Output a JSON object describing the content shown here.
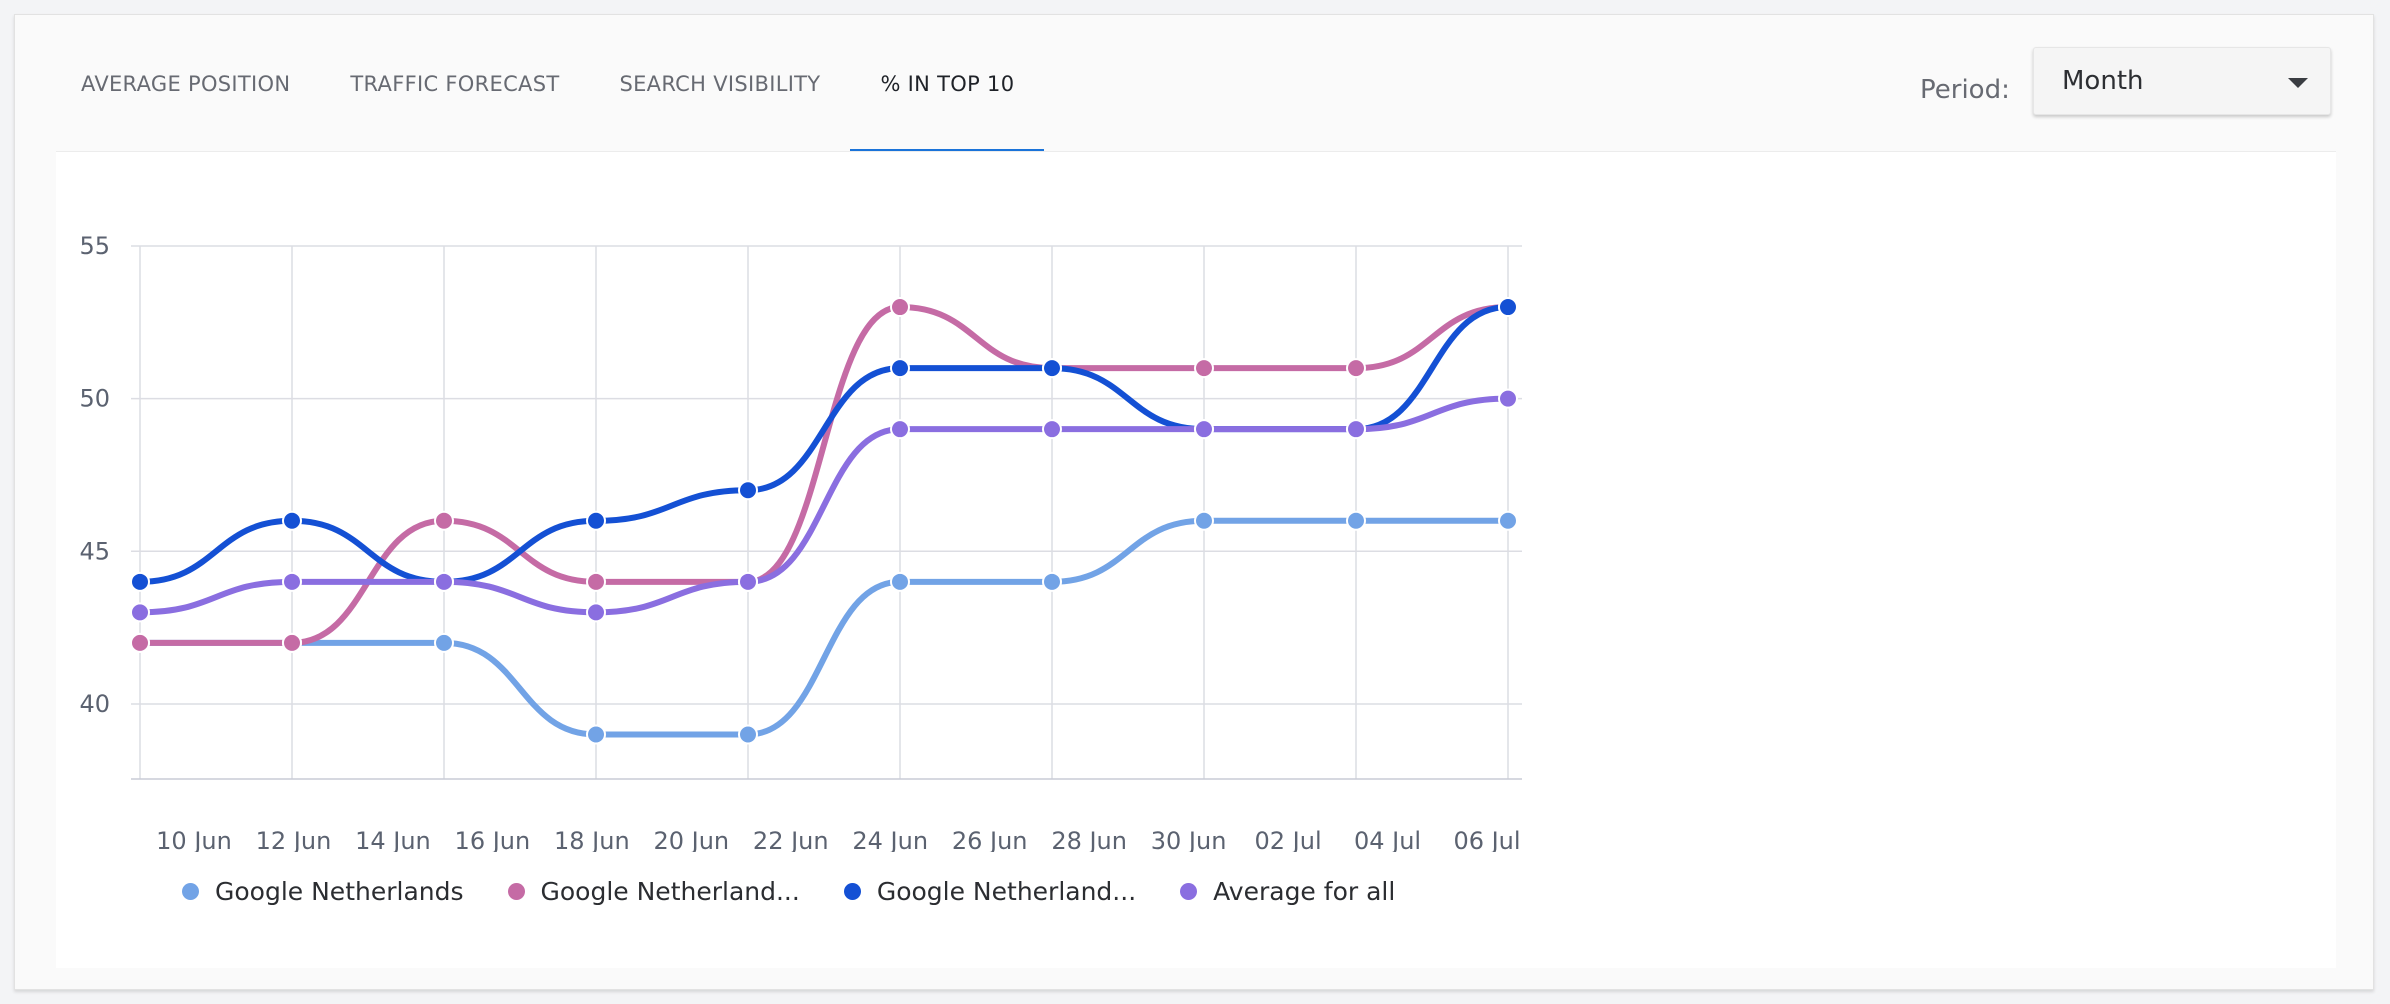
{
  "tabs": [
    {
      "label": "AVERAGE POSITION"
    },
    {
      "label": "TRAFFIC FORECAST"
    },
    {
      "label": "SEARCH VISIBILITY"
    },
    {
      "label": "% IN TOP 10"
    }
  ],
  "active_tab": "% IN TOP 10",
  "period": {
    "label": "Period:",
    "value": "Month",
    "icon": "caret-down-icon"
  },
  "colors": {
    "accent": "#1a73d9"
  },
  "chart_data": {
    "type": "line",
    "x": [
      "2024-06-09",
      "2024-06-12",
      "2024-06-15",
      "2024-06-18",
      "2024-06-21",
      "2024-06-24",
      "2024-06-27",
      "2024-06-30",
      "2024-07-03",
      "2024-07-06"
    ],
    "x_ticks": [
      "10 Jun",
      "12 Jun",
      "14 Jun",
      "16 Jun",
      "18 Jun",
      "20 Jun",
      "22 Jun",
      "24 Jun",
      "26 Jun",
      "28 Jun",
      "30 Jun",
      "02 Jul",
      "04 Jul",
      "06 Jul"
    ],
    "y_ticks": [
      40,
      45,
      50,
      55
    ],
    "ylim": [
      38,
      55
    ],
    "grid": true,
    "legend_position": "bottom-left",
    "series": [
      {
        "name": "Google Netherlands",
        "color": "#72a3e6",
        "values": [
          42,
          42,
          42,
          39,
          39,
          44,
          44,
          46,
          46,
          46
        ]
      },
      {
        "name": "Google Netherland...",
        "color": "#c56ba5",
        "values": [
          42,
          42,
          46,
          44,
          44,
          53,
          51,
          51,
          51,
          53
        ]
      },
      {
        "name": "Google Netherland...",
        "color": "#1450d4",
        "values": [
          44,
          46,
          44,
          46,
          47,
          51,
          51,
          49,
          49,
          53
        ]
      },
      {
        "name": "Average for all",
        "color": "#8a6ee0",
        "values": [
          43,
          44,
          44,
          43,
          44,
          49,
          49,
          49,
          49,
          50
        ]
      }
    ]
  }
}
